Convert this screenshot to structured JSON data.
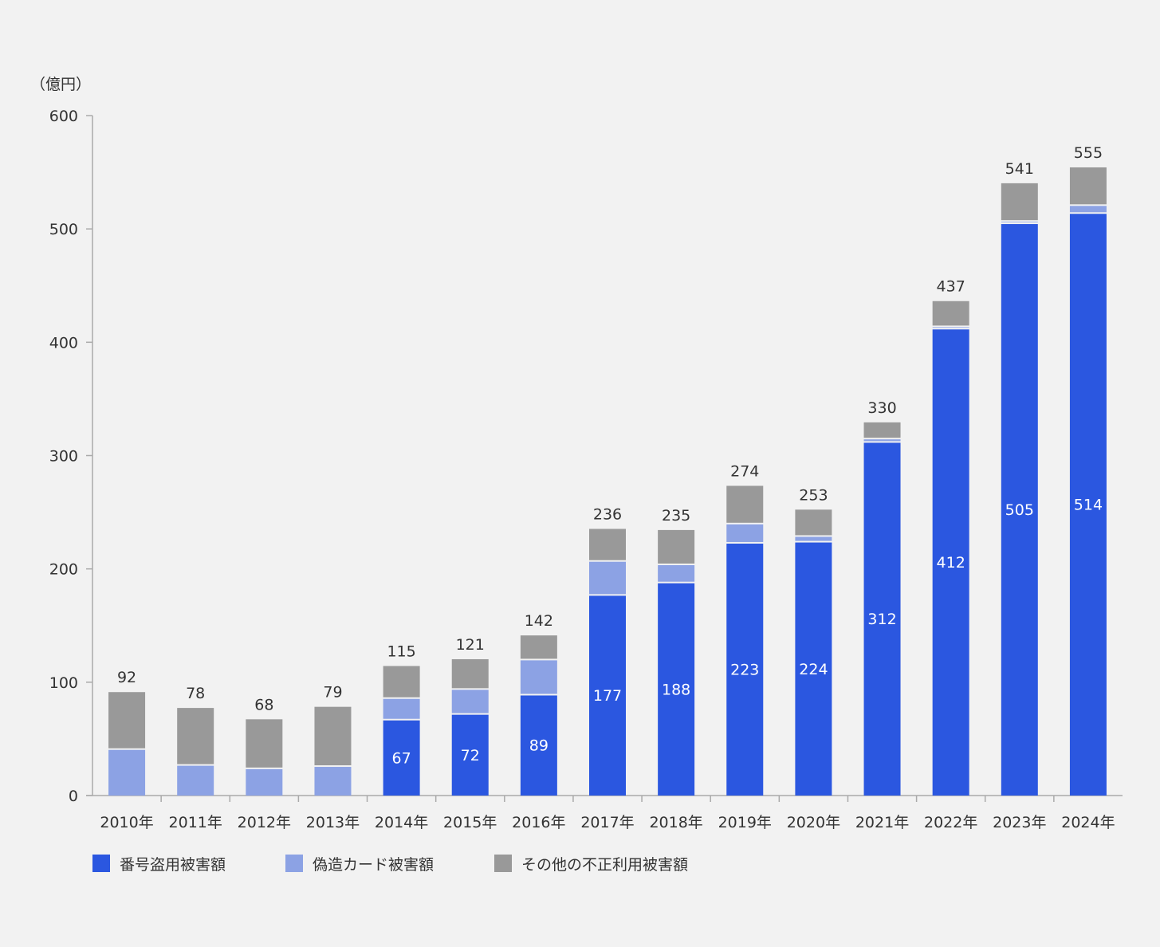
{
  "chart_data": {
    "type": "bar",
    "stacked": true,
    "y_unit": "（億円）",
    "categories": [
      "2010年",
      "2011年",
      "2012年",
      "2013年",
      "2014年",
      "2015年",
      "2016年",
      "2017年",
      "2018年",
      "2019年",
      "2020年",
      "2021年",
      "2022年",
      "2023年",
      "2024年"
    ],
    "series": [
      {
        "name": "番号盗用被害額",
        "color": "#2b57e0",
        "values": [
          0,
          0,
          0,
          0,
          67,
          72,
          89,
          177,
          188,
          223,
          224,
          312,
          412,
          505,
          514
        ],
        "labels": [
          "",
          "",
          "",
          "",
          "67",
          "72",
          "89",
          "177",
          "188",
          "223",
          "224",
          "312",
          "412",
          "505",
          "514"
        ]
      },
      {
        "name": "偽造カード被害額",
        "color": "#8ca2e4",
        "values": [
          41,
          27,
          24,
          26,
          19,
          22,
          31,
          30,
          16,
          17,
          5,
          3,
          2,
          2,
          7
        ]
      },
      {
        "name": "その他の不正利用被害額",
        "color": "#999999",
        "values": [
          51,
          51,
          44,
          53,
          29,
          27,
          22,
          29,
          31,
          34,
          24,
          15,
          23,
          34,
          34
        ]
      }
    ],
    "totals": [
      "92",
      "78",
      "68",
      "79",
      "115",
      "121",
      "142",
      "236",
      "235",
      "274",
      "253",
      "330",
      "437",
      "541",
      "555"
    ],
    "y_ticks": [
      "0",
      "100",
      "200",
      "300",
      "400",
      "500",
      "600"
    ],
    "ylim": [
      0,
      600
    ],
    "legend_position": "bottom-left",
    "grid": false
  }
}
